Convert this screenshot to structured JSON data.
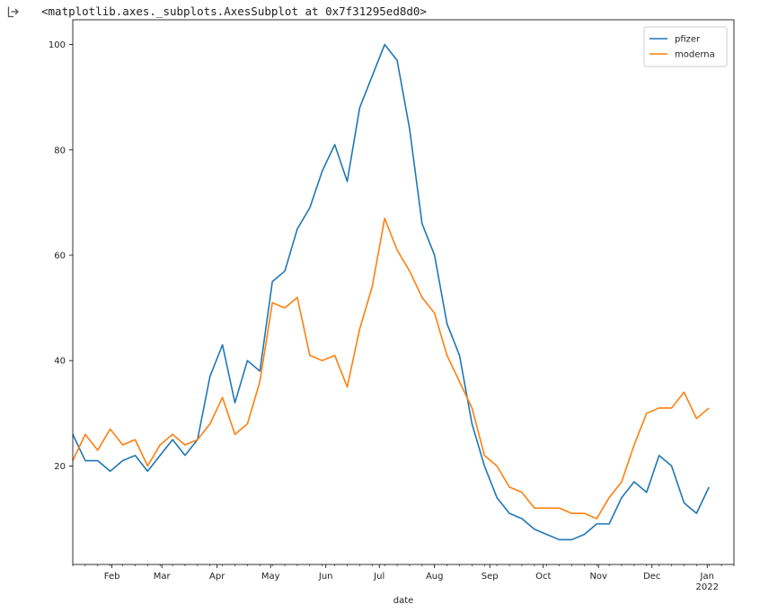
{
  "cell_output": {
    "repr_text": "<matplotlib.axes._subplots.AxesSubplot at 0x7f31295ed8d0>",
    "icon": "output-arrow-icon"
  },
  "chart_data": {
    "type": "line",
    "xlabel": "date",
    "ylabel": "",
    "title": "",
    "ylim": [
      1.3,
      104.7
    ],
    "yticks": [
      20,
      40,
      60,
      80,
      100
    ],
    "x_start": "2021-01-10",
    "x_step_days": 7,
    "xlim": [
      "2021-01-10",
      "2022-01-16"
    ],
    "xtick_dates": [
      "2021-02-01",
      "2021-03-01",
      "2021-04-01",
      "2021-05-01",
      "2021-06-01",
      "2021-07-01",
      "2021-08-01",
      "2021-09-01",
      "2021-10-01",
      "2021-11-01",
      "2021-12-01",
      "2022-01-01"
    ],
    "xtick_labels": [
      "Feb",
      "Mar",
      "Apr",
      "May",
      "Jun",
      "Jul",
      "Aug",
      "Sep",
      "Oct",
      "Nov",
      "Dec",
      "Jan"
    ],
    "xtick_year_label": "2022",
    "grid": false,
    "legend_position": "top-right",
    "series": [
      {
        "name": "pfizer",
        "color": "#1f77b4",
        "values": [
          26,
          21,
          21,
          19,
          21,
          22,
          19,
          22,
          25,
          22,
          25,
          37,
          43,
          32,
          40,
          38,
          55,
          57,
          65,
          69,
          76,
          81,
          74,
          88,
          94,
          100,
          97,
          84,
          66,
          60,
          47,
          41,
          28,
          20,
          14,
          11,
          10,
          8,
          7,
          6,
          6,
          7,
          9,
          9,
          14,
          17,
          15,
          22,
          20,
          13,
          11,
          16
        ]
      },
      {
        "name": "moderna",
        "color": "#ff7f0e",
        "values": [
          21,
          26,
          23,
          27,
          24,
          25,
          20,
          24,
          26,
          24,
          25,
          28,
          33,
          26,
          28,
          36,
          51,
          50,
          52,
          41,
          40,
          41,
          35,
          46,
          54,
          67,
          61,
          57,
          52,
          49,
          41,
          36,
          31,
          22,
          20,
          16,
          15,
          12,
          12,
          12,
          11,
          11,
          10,
          14,
          17,
          24,
          30,
          31,
          31,
          34,
          29,
          31
        ]
      }
    ]
  }
}
